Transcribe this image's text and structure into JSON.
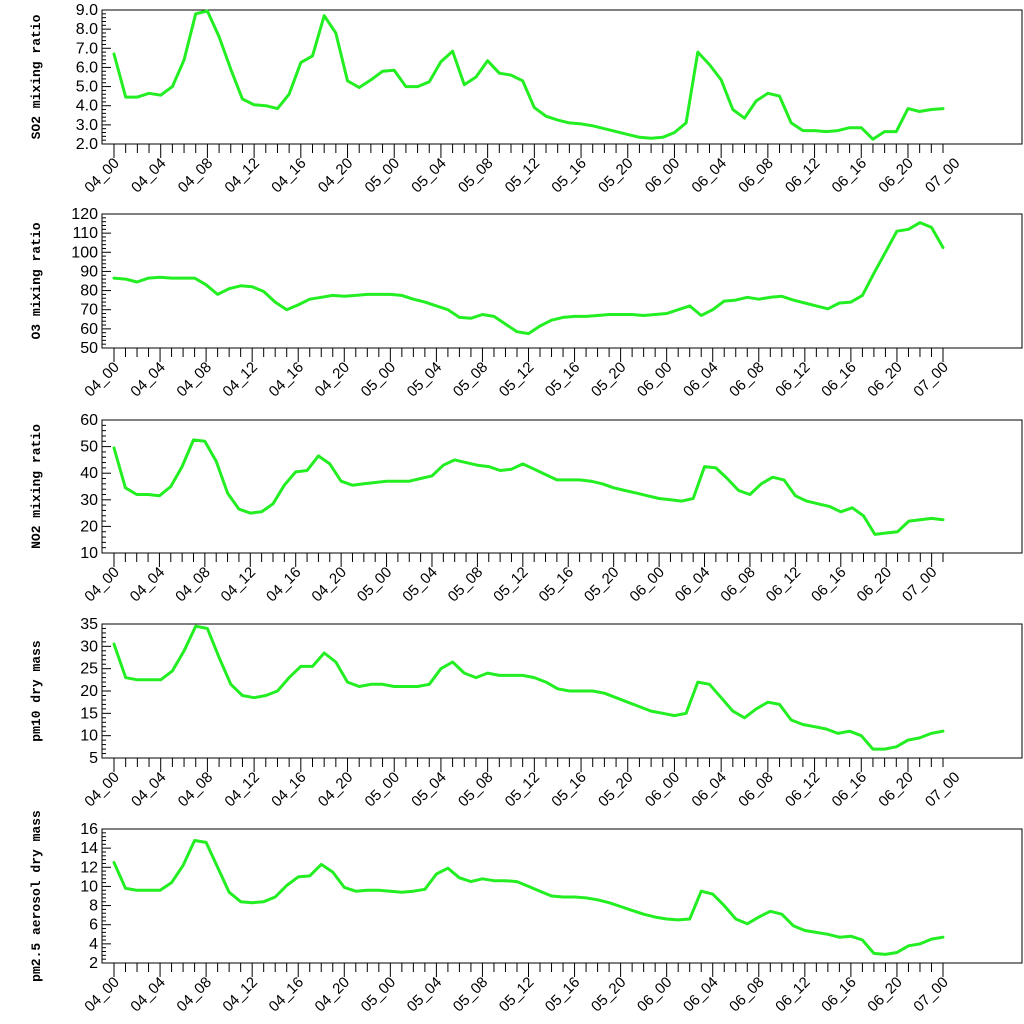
{
  "colors": {
    "line": "#22ee22",
    "axis": "#000000",
    "background": "#ffffff"
  },
  "chart_data": [
    {
      "type": "line",
      "ylabel": "SO2 mixing ratio",
      "ylim": [
        2.0,
        9.0
      ],
      "yticks": [
        "2.0",
        "3.0",
        "4.0",
        "5.0",
        "6.0",
        "7.0",
        "8.0",
        "9.0"
      ],
      "ytick_values": [
        2,
        3,
        4,
        5,
        6,
        7,
        8,
        9
      ],
      "xticks": [
        "04_00",
        "04_04",
        "04_08",
        "04_12",
        "04_16",
        "04_20",
        "05_00",
        "05_04",
        "05_08",
        "05_12",
        "05_16",
        "05_20",
        "06_00",
        "06_04",
        "06_08",
        "06_12",
        "06_16",
        "06_20",
        "07_00"
      ],
      "values": [
        6.7,
        4.45,
        4.45,
        4.65,
        4.55,
        5.0,
        6.4,
        8.8,
        8.95,
        7.6,
        5.9,
        4.35,
        4.05,
        4.0,
        3.85,
        4.6,
        6.25,
        6.6,
        8.7,
        7.8,
        5.3,
        4.95,
        5.35,
        5.8,
        5.85,
        5.0,
        5.0,
        5.25,
        6.3,
        6.85,
        5.1,
        5.5,
        6.35,
        5.7,
        5.6,
        5.3,
        3.9,
        3.45,
        3.25,
        3.1,
        3.05,
        2.95,
        2.8,
        2.65,
        2.5,
        2.35,
        2.3,
        2.35,
        2.6,
        3.1,
        6.8,
        6.15,
        5.35,
        3.8,
        3.35,
        4.25,
        4.65,
        4.5,
        3.1,
        2.7,
        2.7,
        2.65,
        2.7,
        2.85,
        2.85,
        2.25,
        2.65,
        2.65,
        3.85,
        3.7,
        3.8,
        3.85
      ]
    },
    {
      "type": "line",
      "ylabel": "O3 mixing ratio",
      "ylim": [
        50,
        120
      ],
      "yticks": [
        "50",
        "60",
        "70",
        "80",
        "90",
        "100",
        "110",
        "120"
      ],
      "ytick_values": [
        50,
        60,
        70,
        80,
        90,
        100,
        110,
        120
      ],
      "xticks": [
        "04_00",
        "04_04",
        "04_08",
        "04_12",
        "04_16",
        "04_20",
        "05_00",
        "05_04",
        "05_08",
        "05_12",
        "05_16",
        "05_20",
        "06_00",
        "06_04",
        "06_08",
        "06_12",
        "06_16",
        "06_20",
        "07_00"
      ],
      "values": [
        86.5,
        86,
        84.5,
        86.5,
        87,
        86.5,
        86.5,
        86.5,
        83,
        78,
        81,
        82.5,
        82,
        79.5,
        74,
        70,
        72.5,
        75.5,
        76.5,
        77.5,
        77,
        77.5,
        78,
        78,
        78,
        77.5,
        75.5,
        74,
        72,
        70,
        66,
        65.5,
        67.5,
        66.5,
        62.5,
        58.5,
        57.5,
        61.5,
        64.5,
        66,
        66.5,
        66.5,
        67,
        67.5,
        67.5,
        67.5,
        67,
        67.5,
        68,
        70,
        72,
        67,
        70,
        74.5,
        75,
        76.5,
        75.5,
        76.5,
        77,
        75,
        73.5,
        72,
        70.5,
        73.5,
        74,
        77.5,
        89,
        100,
        111,
        112,
        115.5,
        113,
        102.5
      ]
    },
    {
      "type": "line",
      "ylabel": "NO2 mixing ratio",
      "ylim": [
        10,
        60
      ],
      "yticks": [
        "10",
        "20",
        "30",
        "40",
        "50",
        "60"
      ],
      "ytick_values": [
        10,
        20,
        30,
        40,
        50,
        60
      ],
      "xticks": [
        "04_00",
        "04_04",
        "04_08",
        "04_12",
        "04_16",
        "04_20",
        "05_00",
        "05_04",
        "05_08",
        "05_12",
        "05_16",
        "05_20",
        "06_00",
        "06_04",
        "06_08",
        "06_12",
        "06_16",
        "06_20",
        "07_00"
      ],
      "values": [
        49.5,
        34.5,
        32,
        32,
        31.5,
        35,
        42.5,
        52.5,
        52,
        44.5,
        32.5,
        26.5,
        25,
        25.5,
        28.5,
        35.5,
        40.5,
        41,
        46.5,
        43.5,
        37,
        35.5,
        36,
        36.5,
        37,
        37,
        37,
        38,
        39,
        43,
        45,
        44,
        43,
        42.5,
        41,
        41.5,
        43.5,
        41.5,
        39.5,
        37.5,
        37.5,
        37.5,
        37,
        36,
        34.5,
        33.5,
        32.5,
        31.5,
        30.5,
        30,
        29.5,
        30.5,
        42.5,
        42,
        38,
        33.5,
        32,
        36,
        38.5,
        37.5,
        31.5,
        29.5,
        28.5,
        27.5,
        25.5,
        27,
        24,
        17,
        17.5,
        18,
        22,
        22.5,
        23,
        22.5
      ]
    },
    {
      "type": "line",
      "ylabel": "pm10 dry mass",
      "ylim": [
        5,
        35
      ],
      "yticks": [
        "5",
        "10",
        "15",
        "20",
        "25",
        "30",
        "35"
      ],
      "ytick_values": [
        5,
        10,
        15,
        20,
        25,
        30,
        35
      ],
      "xticks": [
        "04_00",
        "04_04",
        "04_08",
        "04_12",
        "04_16",
        "04_20",
        "05_00",
        "05_04",
        "05_08",
        "05_12",
        "05_16",
        "05_20",
        "06_00",
        "06_04",
        "06_08",
        "06_12",
        "06_16",
        "06_20",
        "07_00"
      ],
      "values": [
        30.5,
        23,
        22.5,
        22.5,
        22.5,
        24.5,
        29,
        34.5,
        34,
        27.5,
        21.5,
        19,
        18.5,
        19,
        20,
        23,
        25.5,
        25.5,
        28.5,
        26.5,
        22,
        21,
        21.5,
        21.5,
        21,
        21,
        21,
        21.5,
        25,
        26.5,
        24,
        23,
        24,
        23.5,
        23.5,
        23.5,
        23,
        22,
        20.5,
        20,
        20,
        20,
        19.5,
        18.5,
        17.5,
        16.5,
        15.5,
        15,
        14.5,
        15,
        22,
        21.5,
        18.5,
        15.5,
        14,
        16,
        17.5,
        17,
        13.5,
        12.5,
        12,
        11.5,
        10.5,
        11,
        10,
        7,
        7,
        7.5,
        9,
        9.5,
        10.5,
        11
      ]
    },
    {
      "type": "line",
      "ylabel": "pm2.5 aerosol dry mass",
      "ylim": [
        2,
        16
      ],
      "yticks": [
        "2",
        "4",
        "6",
        "8",
        "10",
        "12",
        "14",
        "16"
      ],
      "ytick_values": [
        2,
        4,
        6,
        8,
        10,
        12,
        14,
        16
      ],
      "xticks": [
        "04_00",
        "04_04",
        "04_08",
        "04_12",
        "04_16",
        "04_20",
        "05_00",
        "05_04",
        "05_08",
        "05_12",
        "05_16",
        "05_20",
        "06_00",
        "06_04",
        "06_08",
        "06_12",
        "06_16",
        "06_20",
        "07_00"
      ],
      "values": [
        12.5,
        9.8,
        9.6,
        9.6,
        9.6,
        10.4,
        12.2,
        14.8,
        14.6,
        12,
        9.4,
        8.4,
        8.3,
        8.4,
        8.9,
        10.1,
        11,
        11.1,
        12.3,
        11.5,
        9.9,
        9.5,
        9.6,
        9.6,
        9.5,
        9.4,
        9.5,
        9.7,
        11.3,
        11.9,
        10.9,
        10.5,
        10.8,
        10.6,
        10.6,
        10.5,
        10,
        9.5,
        9,
        8.9,
        8.9,
        8.8,
        8.6,
        8.3,
        7.9,
        7.5,
        7.1,
        6.8,
        6.6,
        6.5,
        6.6,
        9.5,
        9.2,
        8,
        6.6,
        6.1,
        6.8,
        7.4,
        7.1,
        5.9,
        5.4,
        5.2,
        5,
        4.7,
        4.8,
        4.4,
        3,
        2.9,
        3.1,
        3.8,
        4,
        4.5,
        4.7
      ]
    }
  ]
}
